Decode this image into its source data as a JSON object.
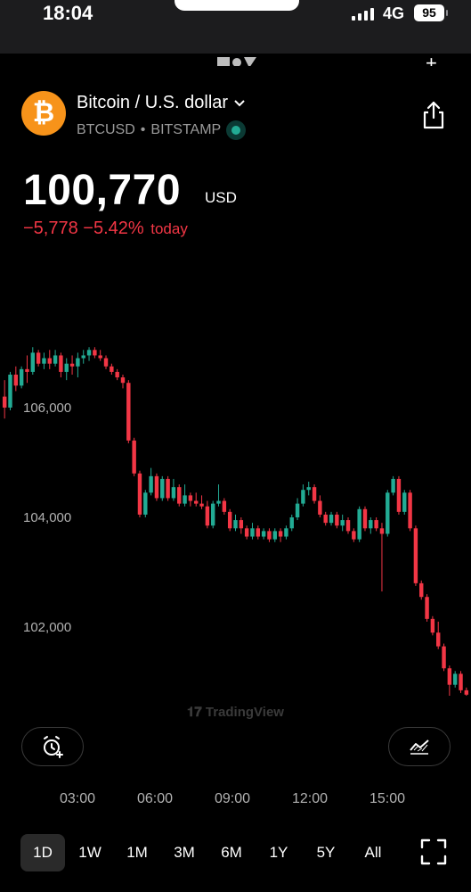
{
  "status_bar": {
    "time": "18:04",
    "network": "4G",
    "battery": "95"
  },
  "header": {
    "title": "Bitcoin / U.S. dollar",
    "symbol": "BTCUSD",
    "separator": "•",
    "exchange": "BITSTAMP",
    "coin_glyph": "₿",
    "icons": [
      "bitcoin-icon",
      "chevron-down-icon",
      "live-indicator-icon",
      "share-icon"
    ]
  },
  "quote": {
    "price": "100,770",
    "currency": "USD",
    "change_abs": "−5,778",
    "change_pct": "−5.42%",
    "change_label": "today"
  },
  "colors": {
    "up": "#22ab94",
    "down": "#f23645",
    "coin": "#f7931a",
    "background": "#000000"
  },
  "chart_data": {
    "type": "candlestick",
    "y_tick_labels": [
      "106,000",
      "104,000",
      "102,000"
    ],
    "y_ticks": [
      106000,
      104000,
      102000
    ],
    "ylim": [
      100750,
      107250
    ],
    "x_tick_labels": [
      "03:00",
      "06:00",
      "09:00",
      "12:00",
      "15:00"
    ],
    "last_price": 100770,
    "watermark": "TradingView",
    "candles": [
      [
        106200,
        106500,
        105800,
        106000
      ],
      [
        106000,
        106650,
        105950,
        106600
      ],
      [
        106600,
        106750,
        106300,
        106400
      ],
      [
        106400,
        106750,
        106350,
        106700
      ],
      [
        106700,
        106950,
        106450,
        106650
      ],
      [
        106650,
        107100,
        106600,
        107000
      ],
      [
        107000,
        107050,
        106750,
        106800
      ],
      [
        106800,
        107000,
        106700,
        106900
      ],
      [
        106900,
        107050,
        106700,
        106800
      ],
      [
        106800,
        107050,
        106750,
        106950
      ],
      [
        106950,
        107000,
        106550,
        106650
      ],
      [
        106650,
        106900,
        106500,
        106800
      ],
      [
        106800,
        106950,
        106600,
        106750
      ],
      [
        106750,
        107000,
        106550,
        106900
      ],
      [
        106900,
        107050,
        106800,
        106950
      ],
      [
        106950,
        107100,
        106850,
        107050
      ],
      [
        107050,
        107100,
        106900,
        106950
      ],
      [
        106950,
        107050,
        106850,
        106900
      ],
      [
        106900,
        106950,
        106700,
        106750
      ],
      [
        106750,
        106800,
        106600,
        106650
      ],
      [
        106650,
        106700,
        106500,
        106550
      ],
      [
        106550,
        106600,
        106350,
        106450
      ],
      [
        106450,
        106500,
        105350,
        105400
      ],
      [
        105400,
        105450,
        104750,
        104800
      ],
      [
        104800,
        104850,
        104000,
        104050
      ],
      [
        104050,
        104500,
        104000,
        104450
      ],
      [
        104450,
        104900,
        104400,
        104750
      ],
      [
        104750,
        104800,
        104300,
        104350
      ],
      [
        104350,
        104750,
        104300,
        104700
      ],
      [
        104700,
        104750,
        104300,
        104350
      ],
      [
        104350,
        104700,
        104300,
        104550
      ],
      [
        104550,
        104600,
        104200,
        104250
      ],
      [
        104250,
        104600,
        104200,
        104400
      ],
      [
        104400,
        104450,
        104200,
        104300
      ],
      [
        104300,
        104450,
        104200,
        104250
      ],
      [
        104250,
        104400,
        104150,
        104200
      ],
      [
        104200,
        104300,
        103800,
        103850
      ],
      [
        103850,
        104300,
        103800,
        104250
      ],
      [
        104250,
        104600,
        104200,
        104300
      ],
      [
        104300,
        104350,
        104050,
        104100
      ],
      [
        104100,
        104150,
        103750,
        103800
      ],
      [
        103800,
        104050,
        103750,
        103950
      ],
      [
        103950,
        104000,
        103700,
        103800
      ],
      [
        103800,
        103850,
        103600,
        103650
      ],
      [
        103650,
        103900,
        103600,
        103800
      ],
      [
        103800,
        103850,
        103600,
        103650
      ],
      [
        103650,
        103800,
        103600,
        103750
      ],
      [
        103750,
        103800,
        103550,
        103600
      ],
      [
        103600,
        103800,
        103550,
        103750
      ],
      [
        103750,
        103800,
        103550,
        103650
      ],
      [
        103650,
        103850,
        103600,
        103800
      ],
      [
        103800,
        104050,
        103750,
        104000
      ],
      [
        104000,
        104350,
        103950,
        104250
      ],
      [
        104250,
        104600,
        104200,
        104500
      ],
      [
        104500,
        104650,
        104400,
        104550
      ],
      [
        104550,
        104600,
        104250,
        104300
      ],
      [
        104300,
        104400,
        104000,
        104050
      ],
      [
        104050,
        104100,
        103850,
        103900
      ],
      [
        103900,
        104100,
        103850,
        104050
      ],
      [
        104050,
        104100,
        103800,
        103850
      ],
      [
        103850,
        104050,
        103750,
        103950
      ],
      [
        103950,
        104000,
        103700,
        103750
      ],
      [
        103750,
        103800,
        103550,
        103600
      ],
      [
        103600,
        104200,
        103550,
        104150
      ],
      [
        104150,
        104200,
        103750,
        103800
      ],
      [
        103800,
        104000,
        103700,
        103950
      ],
      [
        103950,
        104000,
        103750,
        103800
      ],
      [
        103800,
        103900,
        102650,
        103700
      ],
      [
        103700,
        104500,
        103650,
        104450
      ],
      [
        104450,
        104750,
        104400,
        104700
      ],
      [
        104700,
        104750,
        104050,
        104100
      ],
      [
        104100,
        104500,
        104050,
        104450
      ],
      [
        104450,
        104500,
        103750,
        103800
      ],
      [
        103800,
        103850,
        102750,
        102800
      ],
      [
        102800,
        102850,
        102500,
        102550
      ],
      [
        102550,
        102600,
        102100,
        102150
      ],
      [
        102150,
        102200,
        101850,
        101900
      ],
      [
        101900,
        102100,
        101600,
        101650
      ],
      [
        101650,
        101700,
        101200,
        101250
      ],
      [
        101250,
        101300,
        100750,
        100950
      ],
      [
        100950,
        101200,
        100900,
        101150
      ],
      [
        101150,
        101200,
        100800,
        100850
      ],
      [
        100850,
        100900,
        100700,
        100770
      ]
    ]
  },
  "buttons": {
    "alert": "add-alert",
    "indicators": "indicators"
  },
  "timeframes": [
    {
      "label": "1D",
      "active": true
    },
    {
      "label": "1W",
      "active": false
    },
    {
      "label": "1M",
      "active": false
    },
    {
      "label": "3M",
      "active": false
    },
    {
      "label": "6M",
      "active": false
    },
    {
      "label": "1Y",
      "active": false
    },
    {
      "label": "5Y",
      "active": false
    },
    {
      "label": "All",
      "active": false
    }
  ]
}
